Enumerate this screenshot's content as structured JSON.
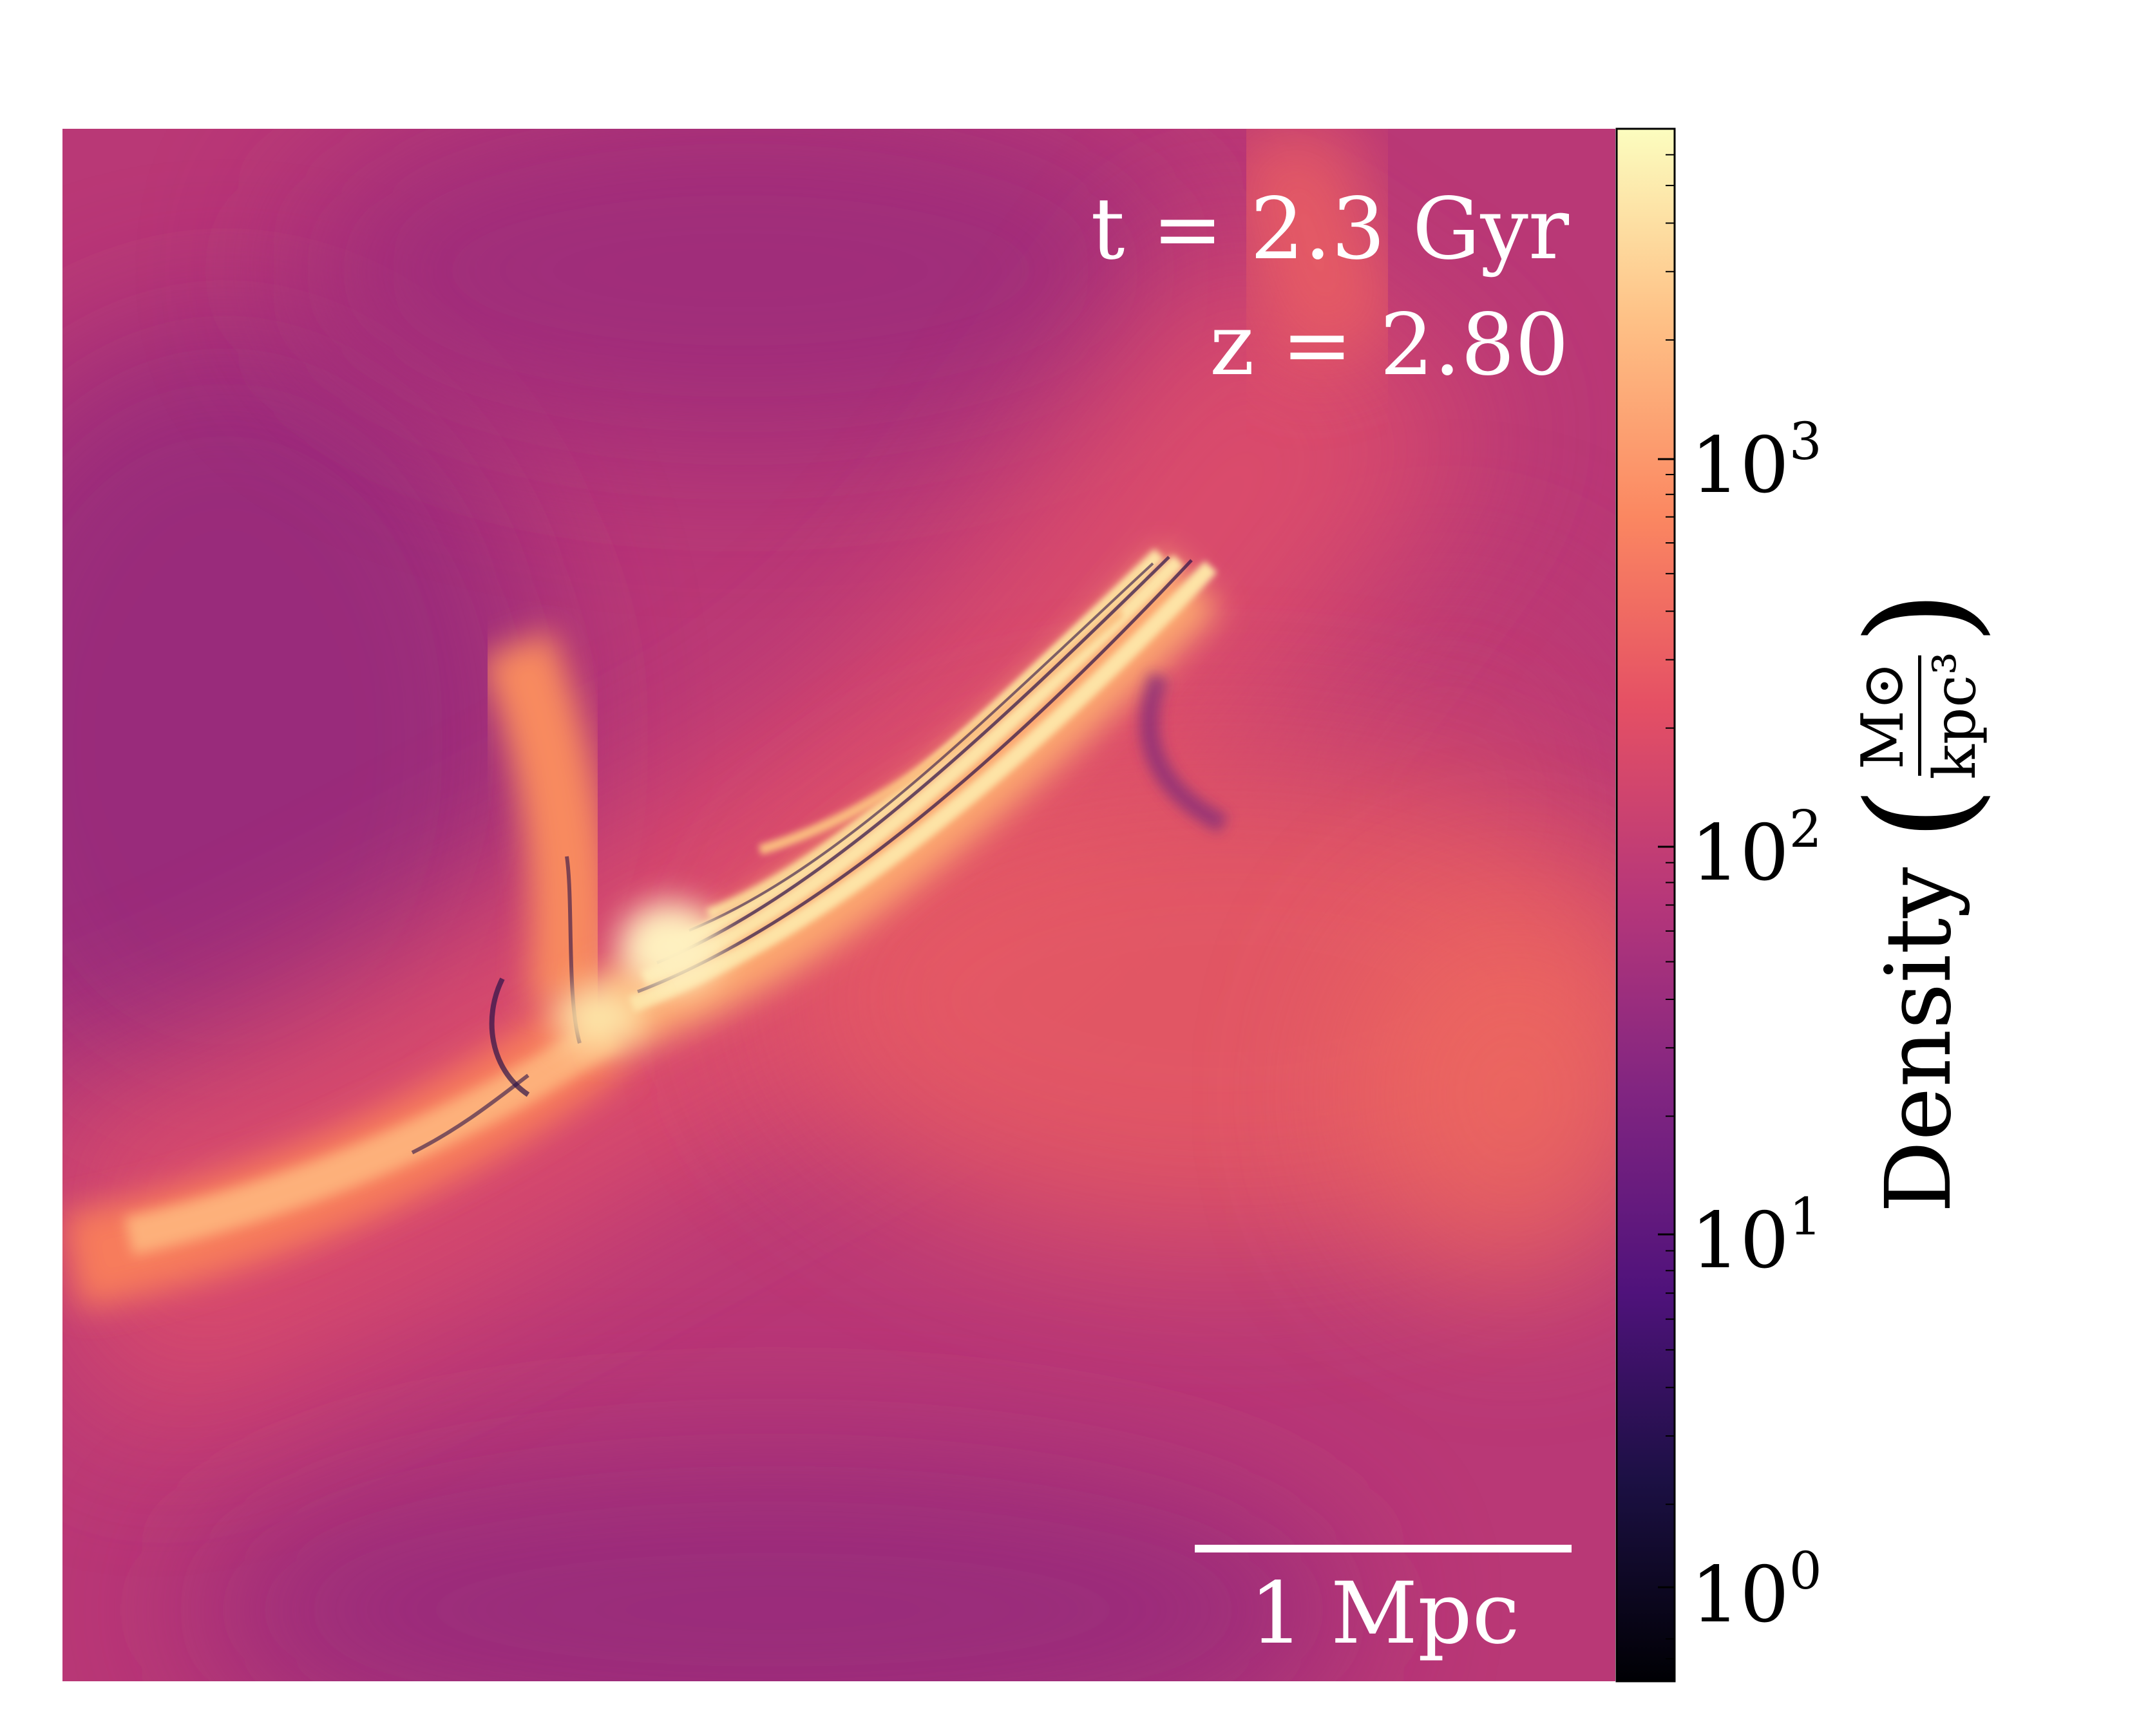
{
  "annotations": {
    "time": "t = 2.3 Gyr",
    "redshift": "z = 2.80",
    "scalebar_label": "1 Mpc"
  },
  "colorbar": {
    "colormap": "magma",
    "scale": "log",
    "range": [
      0.7,
      7000
    ],
    "label": "Density",
    "unit_numerator": "M⊙",
    "unit_denominator": "kpc³",
    "ticks": [
      {
        "base": "10",
        "exp": "0",
        "value": 1
      },
      {
        "base": "10",
        "exp": "1",
        "value": 10
      },
      {
        "base": "10",
        "exp": "2",
        "value": 100
      },
      {
        "base": "10",
        "exp": "3",
        "value": 1000
      }
    ]
  },
  "colors": {
    "background_low": "#a0307a",
    "mid": "#d8456a",
    "high": "#f66c5c",
    "peak": "#fde0a0",
    "void": "#1c0b3a"
  }
}
